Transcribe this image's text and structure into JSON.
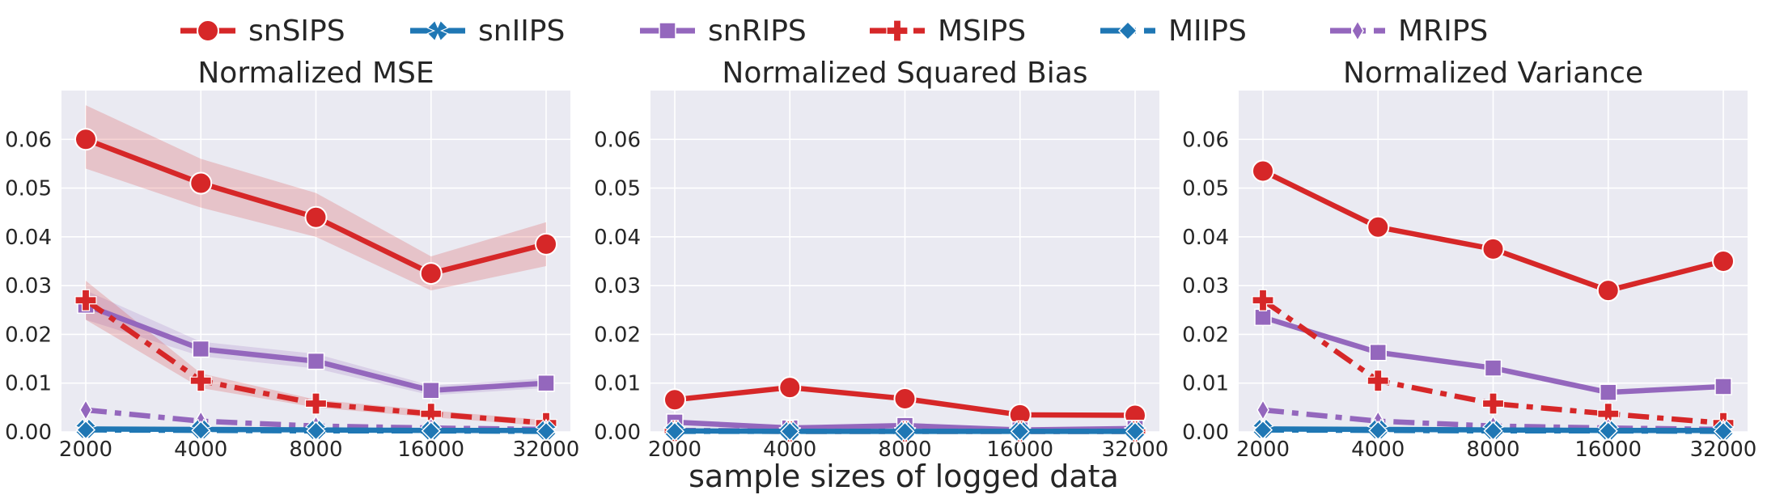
{
  "figure": {
    "xlabel": "sample sizes of logged data",
    "colors": {
      "red": "#d62728",
      "blue": "#1f77b4",
      "purple": "#9467bd",
      "panel_bg": "#eaeaf2",
      "grid": "#ffffff"
    }
  },
  "legend": {
    "placement": "top-center",
    "items": [
      {
        "label": "snSIPS",
        "color": "#d62728",
        "marker": "circle",
        "dash": false
      },
      {
        "label": "snIIPS",
        "color": "#1f77b4",
        "marker": "x",
        "dash": false
      },
      {
        "label": "snRIPS",
        "color": "#9467bd",
        "marker": "square",
        "dash": false
      },
      {
        "label": "MSIPS",
        "color": "#d62728",
        "marker": "plus",
        "dash": true
      },
      {
        "label": "MIIPS",
        "color": "#1f77b4",
        "marker": "diamond",
        "dash": true
      },
      {
        "label": "MRIPS",
        "color": "#9467bd",
        "marker": "thin-diamond",
        "dash": true
      }
    ]
  },
  "chart_data": [
    {
      "type": "line",
      "title": "Normalized MSE",
      "x": [
        2000,
        4000,
        8000,
        16000,
        32000
      ],
      "xscale": "log2",
      "ylim": [
        0,
        0.07
      ],
      "yticks": [
        0.0,
        0.01,
        0.02,
        0.03,
        0.04,
        0.05,
        0.06
      ],
      "grid": true,
      "series": [
        {
          "name": "snSIPS",
          "values": [
            0.06,
            0.051,
            0.044,
            0.0325,
            0.0385
          ],
          "ci_low": [
            0.054,
            0.046,
            0.04,
            0.029,
            0.034
          ],
          "ci_high": [
            0.067,
            0.056,
            0.049,
            0.036,
            0.043
          ]
        },
        {
          "name": "snIIPS",
          "values": [
            0.0006,
            0.0005,
            0.0004,
            0.0003,
            0.0003
          ]
        },
        {
          "name": "snRIPS",
          "values": [
            0.026,
            0.017,
            0.0145,
            0.0085,
            0.01
          ],
          "ci_low": [
            0.023,
            0.0155,
            0.013,
            0.0075,
            0.009
          ],
          "ci_high": [
            0.029,
            0.0185,
            0.016,
            0.0095,
            0.011
          ]
        },
        {
          "name": "MSIPS",
          "values": [
            0.027,
            0.0105,
            0.0058,
            0.0037,
            0.0018
          ],
          "ci_low": [
            0.023,
            0.009,
            0.005,
            0.003,
            0.0012
          ],
          "ci_high": [
            0.031,
            0.012,
            0.0066,
            0.0044,
            0.0024
          ]
        },
        {
          "name": "MIIPS",
          "values": [
            0.0004,
            0.0003,
            0.0002,
            0.0002,
            0.0001
          ]
        },
        {
          "name": "MRIPS",
          "values": [
            0.0045,
            0.0022,
            0.0012,
            0.0008,
            0.0005
          ]
        }
      ]
    },
    {
      "type": "line",
      "title": "Normalized Squared Bias",
      "x": [
        2000,
        4000,
        8000,
        16000,
        32000
      ],
      "xscale": "log2",
      "ylim": [
        0,
        0.07
      ],
      "yticks": [
        0.0,
        0.01,
        0.02,
        0.03,
        0.04,
        0.05,
        0.06
      ],
      "grid": true,
      "series": [
        {
          "name": "snSIPS",
          "values": [
            0.0066,
            0.0091,
            0.0068,
            0.0035,
            0.0034
          ]
        },
        {
          "name": "snIIPS",
          "values": [
            0.0002,
            0.0001,
            0.0001,
            0.0001,
            0.0001
          ]
        },
        {
          "name": "snRIPS",
          "values": [
            0.002,
            0.0008,
            0.0013,
            0.0004,
            0.0007
          ]
        },
        {
          "name": "MSIPS",
          "values": [
            0.0002,
            0.0001,
            0.0001,
            0.0001,
            0.0001
          ]
        },
        {
          "name": "MIIPS",
          "values": [
            0.0001,
            0.0001,
            0.0001,
            0.0001,
            0.0001
          ]
        },
        {
          "name": "MRIPS",
          "values": [
            0.0003,
            0.0002,
            0.0002,
            0.0001,
            0.0001
          ]
        }
      ]
    },
    {
      "type": "line",
      "title": "Normalized Variance",
      "x": [
        2000,
        4000,
        8000,
        16000,
        32000
      ],
      "xscale": "log2",
      "ylim": [
        0,
        0.07
      ],
      "yticks": [
        0.0,
        0.01,
        0.02,
        0.03,
        0.04,
        0.05,
        0.06
      ],
      "grid": true,
      "series": [
        {
          "name": "snSIPS",
          "values": [
            0.0535,
            0.042,
            0.0375,
            0.029,
            0.035
          ]
        },
        {
          "name": "snIIPS",
          "values": [
            0.0006,
            0.0005,
            0.0004,
            0.0003,
            0.0003
          ]
        },
        {
          "name": "snRIPS",
          "values": [
            0.0235,
            0.0163,
            0.0131,
            0.0081,
            0.0093
          ]
        },
        {
          "name": "MSIPS",
          "values": [
            0.027,
            0.0105,
            0.0058,
            0.0037,
            0.0018
          ]
        },
        {
          "name": "MIIPS",
          "values": [
            0.0004,
            0.0003,
            0.0002,
            0.0002,
            0.0001
          ]
        },
        {
          "name": "MRIPS",
          "values": [
            0.0045,
            0.0022,
            0.0012,
            0.0008,
            0.0005
          ]
        }
      ]
    }
  ]
}
